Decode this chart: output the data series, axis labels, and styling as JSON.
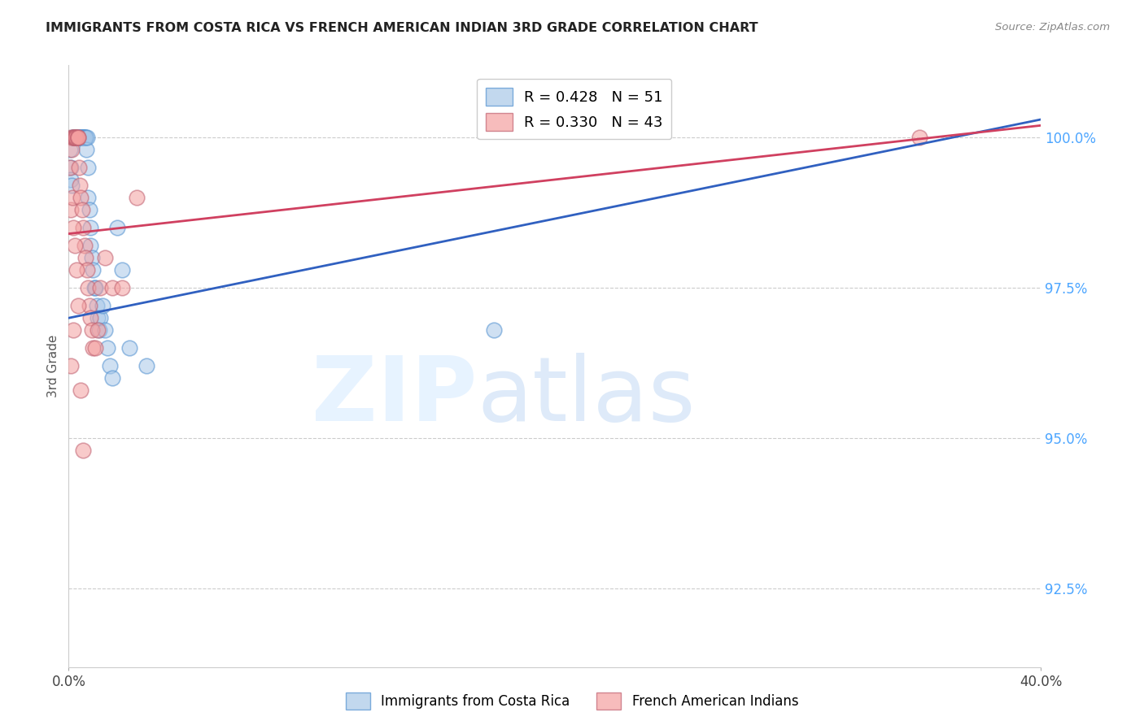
{
  "title": "IMMIGRANTS FROM COSTA RICA VS FRENCH AMERICAN INDIAN 3RD GRADE CORRELATION CHART",
  "source": "Source: ZipAtlas.com",
  "ylabel": "3rd Grade",
  "ylabel_color": "#555555",
  "ytick_color": "#4da6ff",
  "yticks": [
    92.5,
    95.0,
    97.5,
    100.0
  ],
  "ytick_labels": [
    "92.5%",
    "95.0%",
    "97.5%",
    "100.0%"
  ],
  "xlim": [
    0.0,
    40.0
  ],
  "ylim": [
    91.2,
    101.2
  ],
  "blue_R": 0.428,
  "blue_N": 51,
  "pink_R": 0.33,
  "pink_N": 43,
  "blue_color": "#a8c8e8",
  "pink_color": "#f4a0a0",
  "blue_line_color": "#3060c0",
  "pink_line_color": "#d04060",
  "blue_scatter_edge": "#5090d0",
  "pink_scatter_edge": "#c06070",
  "blue_x": [
    0.05,
    0.08,
    0.1,
    0.12,
    0.15,
    0.18,
    0.2,
    0.22,
    0.25,
    0.28,
    0.3,
    0.35,
    0.38,
    0.4,
    0.42,
    0.45,
    0.48,
    0.5,
    0.52,
    0.55,
    0.58,
    0.6,
    0.62,
    0.65,
    0.68,
    0.7,
    0.72,
    0.75,
    0.78,
    0.8,
    0.85,
    0.88,
    0.9,
    0.95,
    1.0,
    1.05,
    1.1,
    1.15,
    1.2,
    1.25,
    1.3,
    1.4,
    1.5,
    1.6,
    1.7,
    1.8,
    2.0,
    2.2,
    2.5,
    3.2,
    17.5
  ],
  "blue_y": [
    99.8,
    99.5,
    99.3,
    99.2,
    100.0,
    100.0,
    100.0,
    100.0,
    100.0,
    100.0,
    100.0,
    100.0,
    100.0,
    100.0,
    100.0,
    100.0,
    100.0,
    100.0,
    100.0,
    100.0,
    100.0,
    100.0,
    100.0,
    100.0,
    100.0,
    100.0,
    99.8,
    100.0,
    99.5,
    99.0,
    98.8,
    98.5,
    98.2,
    98.0,
    97.8,
    97.5,
    97.5,
    97.2,
    97.0,
    96.8,
    97.0,
    97.2,
    96.8,
    96.5,
    96.2,
    96.0,
    98.5,
    97.8,
    96.5,
    96.2,
    96.8
  ],
  "pink_x": [
    0.05,
    0.08,
    0.1,
    0.12,
    0.15,
    0.18,
    0.2,
    0.22,
    0.25,
    0.28,
    0.3,
    0.35,
    0.38,
    0.4,
    0.42,
    0.45,
    0.5,
    0.55,
    0.6,
    0.65,
    0.7,
    0.75,
    0.8,
    0.85,
    0.9,
    0.95,
    1.0,
    1.1,
    1.2,
    1.3,
    1.5,
    1.8,
    2.2,
    2.8,
    0.1,
    0.18,
    0.25,
    0.32,
    0.4,
    0.5,
    0.6,
    35.0,
    0.2
  ],
  "pink_y": [
    99.5,
    100.0,
    98.8,
    99.8,
    99.0,
    100.0,
    100.0,
    100.0,
    100.0,
    100.0,
    100.0,
    100.0,
    100.0,
    100.0,
    99.5,
    99.2,
    99.0,
    98.8,
    98.5,
    98.2,
    98.0,
    97.8,
    97.5,
    97.2,
    97.0,
    96.8,
    96.5,
    96.5,
    96.8,
    97.5,
    98.0,
    97.5,
    97.5,
    99.0,
    96.2,
    98.5,
    98.2,
    97.8,
    97.2,
    95.8,
    94.8,
    100.0,
    96.8
  ],
  "blue_trendline_x": [
    0.0,
    40.0
  ],
  "blue_trendline_y": [
    97.0,
    100.3
  ],
  "pink_trendline_x": [
    0.0,
    40.0
  ],
  "pink_trendline_y": [
    98.4,
    100.2
  ]
}
